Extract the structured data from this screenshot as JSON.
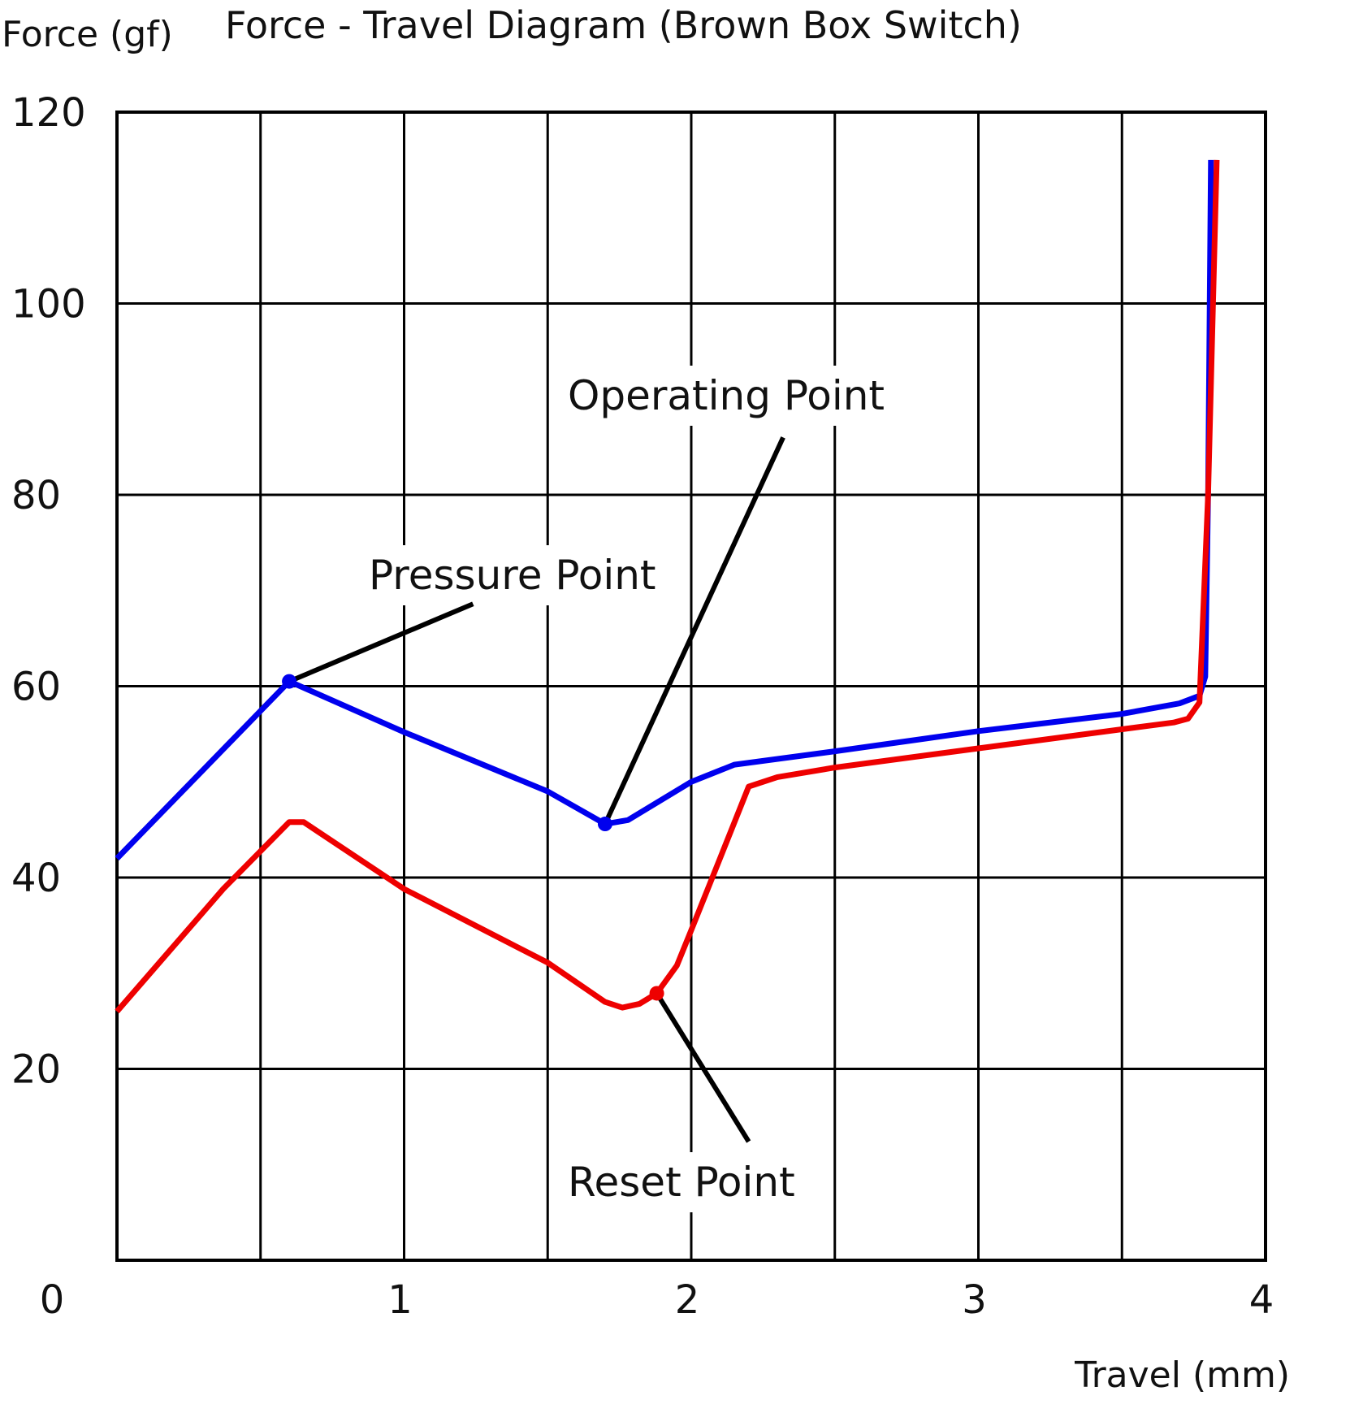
{
  "chart_data": {
    "type": "line",
    "title": "Force - Travel Diagram (Brown Box Switch)",
    "ylabel": "Force (gf)",
    "xlabel": "Travel (mm)",
    "xlim": [
      0,
      4
    ],
    "ylim": [
      0,
      120
    ],
    "x_ticks": [
      0,
      1,
      2,
      3,
      4
    ],
    "y_ticks": [
      0,
      20,
      40,
      60,
      80,
      100,
      120
    ],
    "x_gridlines": [
      0.5,
      1,
      1.5,
      2,
      2.5,
      3,
      3.5
    ],
    "y_gridlines": [
      20,
      40,
      60,
      80,
      100
    ],
    "grid": true,
    "series": [
      {
        "color": "#0000ee",
        "points": [
          [
            0.0,
            42
          ],
          [
            0.6,
            60.5
          ],
          [
            1.0,
            55.2
          ],
          [
            1.5,
            49.0
          ],
          [
            1.7,
            45.6
          ],
          [
            1.78,
            46.0
          ],
          [
            2.0,
            50.0
          ],
          [
            2.15,
            51.8
          ],
          [
            2.5,
            53.2
          ],
          [
            3.0,
            55.3
          ],
          [
            3.5,
            57.1
          ],
          [
            3.7,
            58.2
          ],
          [
            3.77,
            59.0
          ],
          [
            3.79,
            61.0
          ],
          [
            3.8,
            80.0
          ],
          [
            3.81,
            115.0
          ]
        ]
      },
      {
        "color": "#ee0000",
        "points": [
          [
            0.0,
            26
          ],
          [
            0.37,
            38.8
          ],
          [
            0.6,
            45.8
          ],
          [
            0.65,
            45.8
          ],
          [
            1.0,
            38.8
          ],
          [
            1.5,
            31.1
          ],
          [
            1.7,
            27.0
          ],
          [
            1.76,
            26.4
          ],
          [
            1.82,
            26.8
          ],
          [
            1.88,
            27.9
          ],
          [
            1.95,
            30.8
          ],
          [
            2.0,
            34.5
          ],
          [
            2.1,
            42.0
          ],
          [
            2.2,
            49.5
          ],
          [
            2.3,
            50.5
          ],
          [
            2.5,
            51.5
          ],
          [
            3.0,
            53.5
          ],
          [
            3.5,
            55.5
          ],
          [
            3.68,
            56.2
          ],
          [
            3.73,
            56.6
          ],
          [
            3.77,
            58.3
          ],
          [
            3.8,
            80.0
          ],
          [
            3.83,
            115.0
          ]
        ]
      }
    ],
    "markers": [
      {
        "x": 0.6,
        "y": 60.5,
        "color": "#0000ee"
      },
      {
        "x": 1.7,
        "y": 45.6,
        "color": "#0000ee"
      },
      {
        "x": 1.88,
        "y": 27.9,
        "color": "#ee0000"
      }
    ],
    "annotations": [
      {
        "text": "Pressure Point",
        "target": [
          0.6,
          60.5
        ],
        "line_end": [
          1.24,
          68.6
        ]
      },
      {
        "text": "Operating Point",
        "target": [
          1.7,
          45.6
        ],
        "line_end": [
          2.32,
          86.0
        ]
      },
      {
        "text": "Reset Point",
        "target": [
          1.88,
          27.9
        ],
        "line_end": [
          2.2,
          12.4
        ]
      }
    ]
  }
}
